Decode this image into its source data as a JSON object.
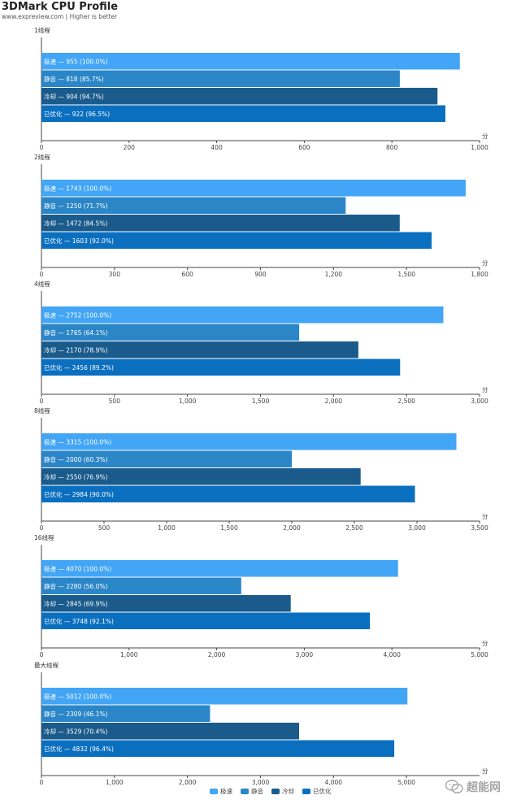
{
  "title": "3DMark CPU Profile",
  "subtitle": "www.expreview.com | Higher is better",
  "unit": "分",
  "colors": [
    "#42a5f5",
    "#2b86c8",
    "#1a5b8c",
    "#0b6fc0"
  ],
  "legend": [
    "极速",
    "静音",
    "冷却",
    "已优化"
  ],
  "watermark": {
    "text": "超能网",
    "icon": "wechat-icon"
  },
  "chart_data": [
    {
      "type": "bar",
      "title": "1线程",
      "categories": [
        "极速",
        "静音",
        "冷却",
        "已优化"
      ],
      "values": [
        955,
        818,
        904,
        922
      ],
      "percents": [
        "100.0%",
        "85.7%",
        "94.7%",
        "96.5%"
      ],
      "xlim": [
        0,
        1000
      ],
      "ticks": [
        0,
        200,
        400,
        600,
        800,
        1000
      ],
      "tick_labels": [
        "0",
        "200",
        "400",
        "600",
        "800",
        "1,000"
      ],
      "xlabel": "分"
    },
    {
      "type": "bar",
      "title": "2线程",
      "categories": [
        "极速",
        "静音",
        "冷却",
        "已优化"
      ],
      "values": [
        1743,
        1250,
        1472,
        1603
      ],
      "percents": [
        "100.0%",
        "71.7%",
        "84.5%",
        "92.0%"
      ],
      "xlim": [
        0,
        1800
      ],
      "ticks": [
        0,
        300,
        600,
        900,
        1200,
        1500,
        1800
      ],
      "tick_labels": [
        "0",
        "300",
        "600",
        "900",
        "1,200",
        "1,500",
        "1,800"
      ],
      "xlabel": "分"
    },
    {
      "type": "bar",
      "title": "4线程",
      "categories": [
        "极速",
        "静音",
        "冷却",
        "已优化"
      ],
      "values": [
        2752,
        1765,
        2170,
        2456
      ],
      "percents": [
        "100.0%",
        "64.1%",
        "78.9%",
        "89.2%"
      ],
      "xlim": [
        0,
        3000
      ],
      "ticks": [
        0,
        500,
        1000,
        1500,
        2000,
        2500,
        3000
      ],
      "tick_labels": [
        "0",
        "500",
        "1,000",
        "1,500",
        "2,000",
        "2,500",
        "3,000"
      ],
      "xlabel": "分"
    },
    {
      "type": "bar",
      "title": "8线程",
      "categories": [
        "极速",
        "静音",
        "冷却",
        "已优化"
      ],
      "values": [
        3315,
        2000,
        2550,
        2984
      ],
      "percents": [
        "100.0%",
        "60.3%",
        "76.9%",
        "90.0%"
      ],
      "xlim": [
        0,
        3500
      ],
      "ticks": [
        0,
        500,
        1000,
        1500,
        2000,
        2500,
        3000,
        3500
      ],
      "tick_labels": [
        "0",
        "500",
        "1,000",
        "1,500",
        "2,000",
        "2,500",
        "3,000",
        "3,500"
      ],
      "xlabel": "分"
    },
    {
      "type": "bar",
      "title": "16线程",
      "categories": [
        "极速",
        "静音",
        "冷却",
        "已优化"
      ],
      "values": [
        4070,
        2280,
        2845,
        3748
      ],
      "percents": [
        "100.0%",
        "56.0%",
        "69.9%",
        "92.1%"
      ],
      "xlim": [
        0,
        5000
      ],
      "ticks": [
        0,
        1000,
        2000,
        3000,
        4000,
        5000
      ],
      "tick_labels": [
        "0",
        "1,000",
        "2,000",
        "3,000",
        "4,000",
        "5,000"
      ],
      "xlabel": "分"
    },
    {
      "type": "bar",
      "title": "最大线程",
      "categories": [
        "极速",
        "静音",
        "冷却",
        "已优化"
      ],
      "values": [
        5012,
        2309,
        3529,
        4832
      ],
      "percents": [
        "100.0%",
        "46.1%",
        "70.4%",
        "96.4%"
      ],
      "xlim": [
        0,
        6000
      ],
      "ticks": [
        0,
        1000,
        2000,
        3000,
        4000,
        5000
      ],
      "tick_labels": [
        "0",
        "1,000",
        "2,000",
        "3,000",
        "4,000",
        "5,000"
      ],
      "xlabel": "分"
    }
  ]
}
